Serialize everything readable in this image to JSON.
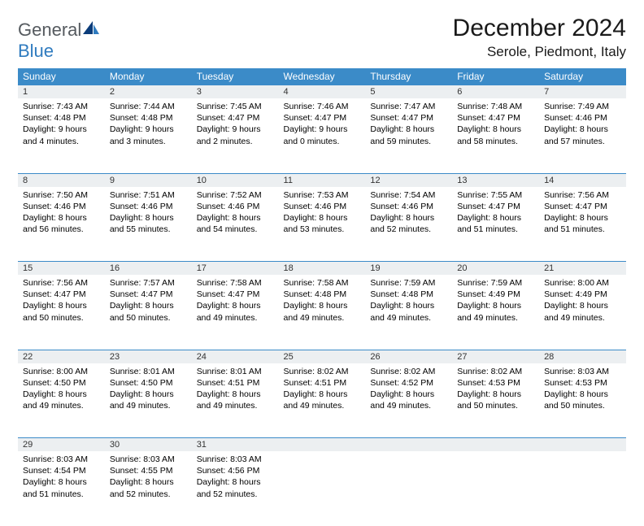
{
  "brand": {
    "part1": "General",
    "part2": "Blue"
  },
  "title": "December 2024",
  "location": "Serole, Piedmont, Italy",
  "colors": {
    "header_bg": "#3b8bc8",
    "header_text": "#ffffff",
    "daynum_bg": "#eceff1",
    "daynum_border": "#3b8bc8",
    "body_bg": "#ffffff",
    "text": "#000000",
    "logo_gray": "#555a5f",
    "logo_blue": "#2f7bbf"
  },
  "day_headers": [
    "Sunday",
    "Monday",
    "Tuesday",
    "Wednesday",
    "Thursday",
    "Friday",
    "Saturday"
  ],
  "weeks": [
    [
      {
        "n": "1",
        "sunrise": "Sunrise: 7:43 AM",
        "sunset": "Sunset: 4:48 PM",
        "dl1": "Daylight: 9 hours",
        "dl2": "and 4 minutes."
      },
      {
        "n": "2",
        "sunrise": "Sunrise: 7:44 AM",
        "sunset": "Sunset: 4:48 PM",
        "dl1": "Daylight: 9 hours",
        "dl2": "and 3 minutes."
      },
      {
        "n": "3",
        "sunrise": "Sunrise: 7:45 AM",
        "sunset": "Sunset: 4:47 PM",
        "dl1": "Daylight: 9 hours",
        "dl2": "and 2 minutes."
      },
      {
        "n": "4",
        "sunrise": "Sunrise: 7:46 AM",
        "sunset": "Sunset: 4:47 PM",
        "dl1": "Daylight: 9 hours",
        "dl2": "and 0 minutes."
      },
      {
        "n": "5",
        "sunrise": "Sunrise: 7:47 AM",
        "sunset": "Sunset: 4:47 PM",
        "dl1": "Daylight: 8 hours",
        "dl2": "and 59 minutes."
      },
      {
        "n": "6",
        "sunrise": "Sunrise: 7:48 AM",
        "sunset": "Sunset: 4:47 PM",
        "dl1": "Daylight: 8 hours",
        "dl2": "and 58 minutes."
      },
      {
        "n": "7",
        "sunrise": "Sunrise: 7:49 AM",
        "sunset": "Sunset: 4:46 PM",
        "dl1": "Daylight: 8 hours",
        "dl2": "and 57 minutes."
      }
    ],
    [
      {
        "n": "8",
        "sunrise": "Sunrise: 7:50 AM",
        "sunset": "Sunset: 4:46 PM",
        "dl1": "Daylight: 8 hours",
        "dl2": "and 56 minutes."
      },
      {
        "n": "9",
        "sunrise": "Sunrise: 7:51 AM",
        "sunset": "Sunset: 4:46 PM",
        "dl1": "Daylight: 8 hours",
        "dl2": "and 55 minutes."
      },
      {
        "n": "10",
        "sunrise": "Sunrise: 7:52 AM",
        "sunset": "Sunset: 4:46 PM",
        "dl1": "Daylight: 8 hours",
        "dl2": "and 54 minutes."
      },
      {
        "n": "11",
        "sunrise": "Sunrise: 7:53 AM",
        "sunset": "Sunset: 4:46 PM",
        "dl1": "Daylight: 8 hours",
        "dl2": "and 53 minutes."
      },
      {
        "n": "12",
        "sunrise": "Sunrise: 7:54 AM",
        "sunset": "Sunset: 4:46 PM",
        "dl1": "Daylight: 8 hours",
        "dl2": "and 52 minutes."
      },
      {
        "n": "13",
        "sunrise": "Sunrise: 7:55 AM",
        "sunset": "Sunset: 4:47 PM",
        "dl1": "Daylight: 8 hours",
        "dl2": "and 51 minutes."
      },
      {
        "n": "14",
        "sunrise": "Sunrise: 7:56 AM",
        "sunset": "Sunset: 4:47 PM",
        "dl1": "Daylight: 8 hours",
        "dl2": "and 51 minutes."
      }
    ],
    [
      {
        "n": "15",
        "sunrise": "Sunrise: 7:56 AM",
        "sunset": "Sunset: 4:47 PM",
        "dl1": "Daylight: 8 hours",
        "dl2": "and 50 minutes."
      },
      {
        "n": "16",
        "sunrise": "Sunrise: 7:57 AM",
        "sunset": "Sunset: 4:47 PM",
        "dl1": "Daylight: 8 hours",
        "dl2": "and 50 minutes."
      },
      {
        "n": "17",
        "sunrise": "Sunrise: 7:58 AM",
        "sunset": "Sunset: 4:47 PM",
        "dl1": "Daylight: 8 hours",
        "dl2": "and 49 minutes."
      },
      {
        "n": "18",
        "sunrise": "Sunrise: 7:58 AM",
        "sunset": "Sunset: 4:48 PM",
        "dl1": "Daylight: 8 hours",
        "dl2": "and 49 minutes."
      },
      {
        "n": "19",
        "sunrise": "Sunrise: 7:59 AM",
        "sunset": "Sunset: 4:48 PM",
        "dl1": "Daylight: 8 hours",
        "dl2": "and 49 minutes."
      },
      {
        "n": "20",
        "sunrise": "Sunrise: 7:59 AM",
        "sunset": "Sunset: 4:49 PM",
        "dl1": "Daylight: 8 hours",
        "dl2": "and 49 minutes."
      },
      {
        "n": "21",
        "sunrise": "Sunrise: 8:00 AM",
        "sunset": "Sunset: 4:49 PM",
        "dl1": "Daylight: 8 hours",
        "dl2": "and 49 minutes."
      }
    ],
    [
      {
        "n": "22",
        "sunrise": "Sunrise: 8:00 AM",
        "sunset": "Sunset: 4:50 PM",
        "dl1": "Daylight: 8 hours",
        "dl2": "and 49 minutes."
      },
      {
        "n": "23",
        "sunrise": "Sunrise: 8:01 AM",
        "sunset": "Sunset: 4:50 PM",
        "dl1": "Daylight: 8 hours",
        "dl2": "and 49 minutes."
      },
      {
        "n": "24",
        "sunrise": "Sunrise: 8:01 AM",
        "sunset": "Sunset: 4:51 PM",
        "dl1": "Daylight: 8 hours",
        "dl2": "and 49 minutes."
      },
      {
        "n": "25",
        "sunrise": "Sunrise: 8:02 AM",
        "sunset": "Sunset: 4:51 PM",
        "dl1": "Daylight: 8 hours",
        "dl2": "and 49 minutes."
      },
      {
        "n": "26",
        "sunrise": "Sunrise: 8:02 AM",
        "sunset": "Sunset: 4:52 PM",
        "dl1": "Daylight: 8 hours",
        "dl2": "and 49 minutes."
      },
      {
        "n": "27",
        "sunrise": "Sunrise: 8:02 AM",
        "sunset": "Sunset: 4:53 PM",
        "dl1": "Daylight: 8 hours",
        "dl2": "and 50 minutes."
      },
      {
        "n": "28",
        "sunrise": "Sunrise: 8:03 AM",
        "sunset": "Sunset: 4:53 PM",
        "dl1": "Daylight: 8 hours",
        "dl2": "and 50 minutes."
      }
    ],
    [
      {
        "n": "29",
        "sunrise": "Sunrise: 8:03 AM",
        "sunset": "Sunset: 4:54 PM",
        "dl1": "Daylight: 8 hours",
        "dl2": "and 51 minutes."
      },
      {
        "n": "30",
        "sunrise": "Sunrise: 8:03 AM",
        "sunset": "Sunset: 4:55 PM",
        "dl1": "Daylight: 8 hours",
        "dl2": "and 52 minutes."
      },
      {
        "n": "31",
        "sunrise": "Sunrise: 8:03 AM",
        "sunset": "Sunset: 4:56 PM",
        "dl1": "Daylight: 8 hours",
        "dl2": "and 52 minutes."
      },
      null,
      null,
      null,
      null
    ]
  ]
}
